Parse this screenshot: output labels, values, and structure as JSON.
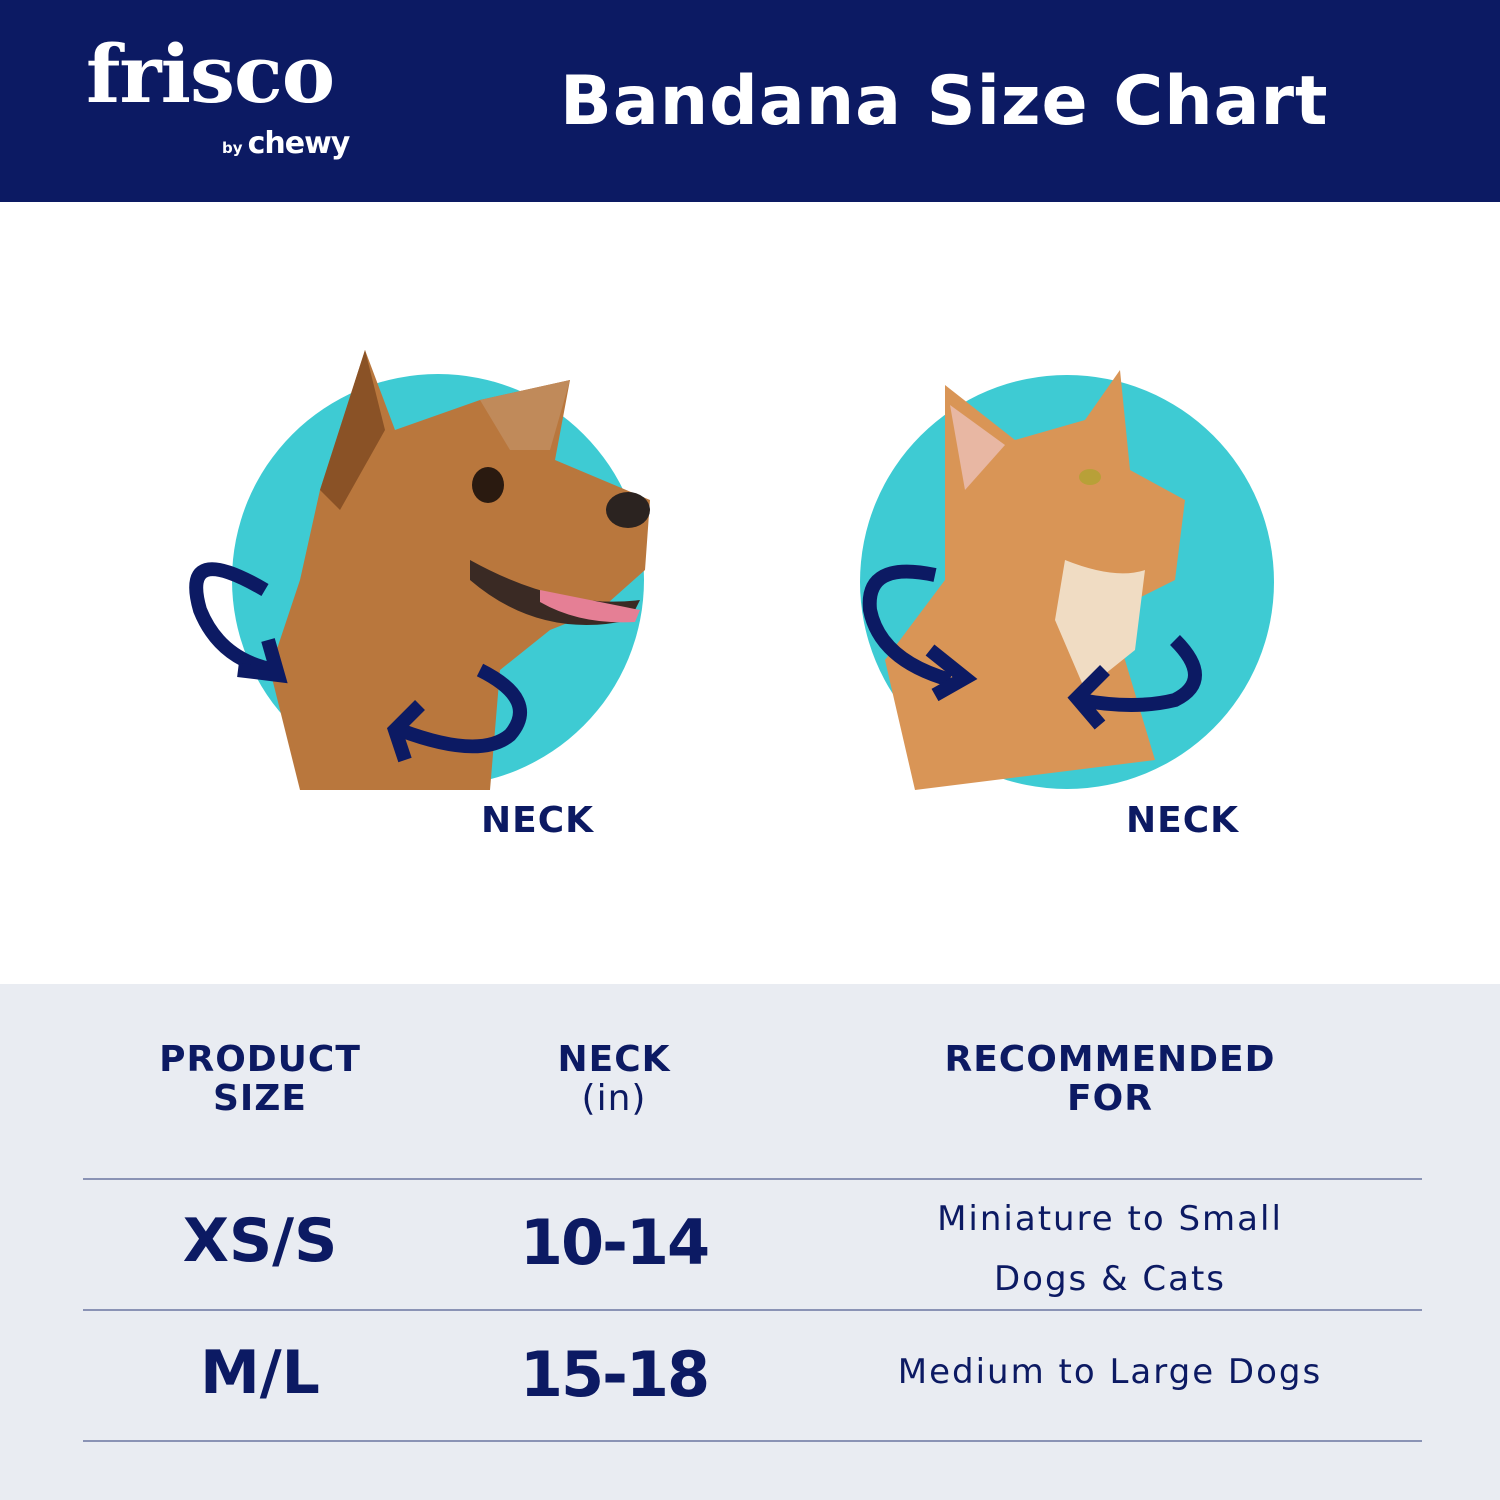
{
  "header": {
    "brand": "frisco",
    "brand_sub_by": "by",
    "brand_sub_name": "chewy",
    "title": "Bandana Size Chart"
  },
  "illustrations": [
    {
      "animal": "dog",
      "label": "NECK"
    },
    {
      "animal": "cat",
      "label": "NECK"
    }
  ],
  "colors": {
    "navy": "#0c1a63",
    "teal": "#3ecbd3",
    "table_bg": "#e9ecf2"
  },
  "table": {
    "columns": [
      {
        "line1": "PRODUCT",
        "line2": "SIZE"
      },
      {
        "line1": "NECK",
        "line2": "(in)"
      },
      {
        "line1": "RECOMMENDED",
        "line2": "FOR"
      }
    ],
    "rows": [
      {
        "size": "XS/S",
        "neck": "10-14",
        "rec1": "Miniature to Small",
        "rec2": "Dogs & Cats"
      },
      {
        "size": "M/L",
        "neck": "15-18",
        "rec1": "Medium to Large Dogs",
        "rec2": ""
      }
    ]
  }
}
